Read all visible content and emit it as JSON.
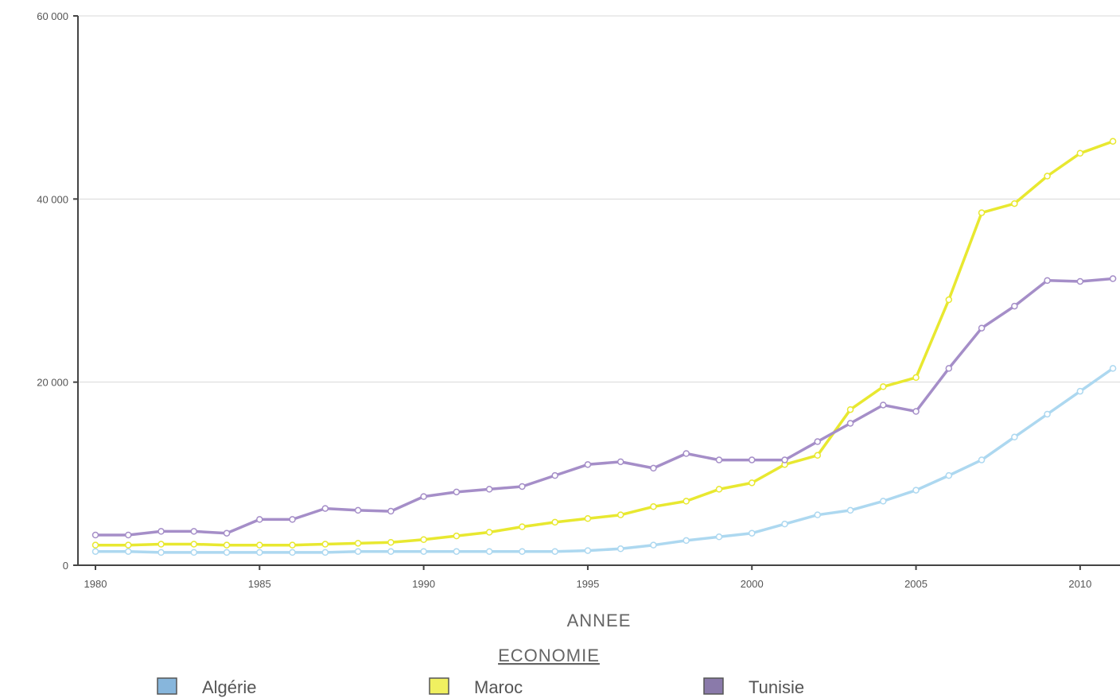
{
  "chart_data": {
    "type": "line",
    "xlabel": "ANNEE",
    "ylabel": "",
    "ylim": [
      0,
      60000
    ],
    "xlim": [
      1980,
      2011
    ],
    "y_ticks": [
      0,
      20000,
      40000,
      60000
    ],
    "y_tick_labels": [
      "0",
      "20 000",
      "40 000",
      "60 000"
    ],
    "x_ticks": [
      1980,
      1985,
      1990,
      1995,
      2000,
      2005,
      2010
    ],
    "x_tick_labels": [
      "1980",
      "1985",
      "1990",
      "1995",
      "2000",
      "2005",
      "2010"
    ],
    "grid": "horizontal",
    "legend_title": "ECONOMIE",
    "legend_position": "bottom",
    "x": [
      1980,
      1981,
      1982,
      1983,
      1984,
      1985,
      1986,
      1987,
      1988,
      1989,
      1990,
      1991,
      1992,
      1993,
      1994,
      1995,
      1996,
      1997,
      1998,
      1999,
      2000,
      2001,
      2002,
      2003,
      2004,
      2005,
      2006,
      2007,
      2008,
      2009,
      2010,
      2011
    ],
    "series": [
      {
        "name": "Algérie",
        "color": "#add8f0",
        "swatch": "#87b6dc",
        "values": [
          1500,
          1500,
          1400,
          1400,
          1400,
          1400,
          1400,
          1400,
          1500,
          1500,
          1500,
          1500,
          1500,
          1500,
          1500,
          1600,
          1800,
          2200,
          2700,
          3100,
          3500,
          4500,
          5500,
          6000,
          7000,
          8200,
          9800,
          11500,
          14000,
          16500,
          19000,
          21500
        ]
      },
      {
        "name": "Maroc",
        "color": "#e8e830",
        "swatch": "#f0f060",
        "values": [
          2200,
          2200,
          2300,
          2300,
          2200,
          2200,
          2200,
          2300,
          2400,
          2500,
          2800,
          3200,
          3600,
          4200,
          4700,
          5100,
          5500,
          6400,
          7000,
          8300,
          9000,
          11000,
          12000,
          17000,
          19500,
          20500,
          29000,
          38500,
          39500,
          42500,
          45000,
          46300
        ]
      },
      {
        "name": "Tunisie",
        "color": "#a58ec8",
        "swatch": "#8a7aaa",
        "values": [
          3300,
          3300,
          3700,
          3700,
          3500,
          5000,
          5000,
          6200,
          6000,
          5900,
          7500,
          8000,
          8300,
          8600,
          9800,
          11000,
          11300,
          10600,
          12200,
          11500,
          11500,
          11500,
          13500,
          15500,
          17500,
          16800,
          21500,
          25900,
          28300,
          31100,
          31000,
          31300
        ]
      }
    ]
  }
}
